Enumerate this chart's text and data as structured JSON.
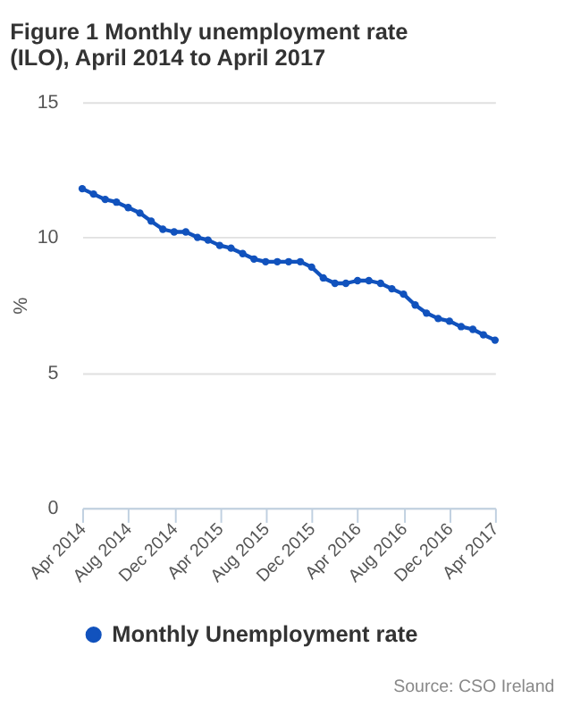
{
  "chart_data": {
    "type": "line",
    "title": "Figure 1 Monthly unemployment rate (ILO), April 2014 to April 2017",
    "ylabel": "%",
    "x": [
      "2014-04",
      "2014-05",
      "2014-06",
      "2014-07",
      "2014-08",
      "2014-09",
      "2014-10",
      "2014-11",
      "2014-12",
      "2015-01",
      "2015-02",
      "2015-03",
      "2015-04",
      "2015-05",
      "2015-06",
      "2015-07",
      "2015-08",
      "2015-09",
      "2015-10",
      "2015-11",
      "2015-12",
      "2016-01",
      "2016-02",
      "2016-03",
      "2016-04",
      "2016-05",
      "2016-06",
      "2016-07",
      "2016-08",
      "2016-09",
      "2016-10",
      "2016-11",
      "2016-12",
      "2017-01",
      "2017-02",
      "2017-03",
      "2017-04"
    ],
    "series": [
      {
        "name": "Monthly Unemployment rate",
        "color": "#1152bd",
        "values": [
          11.8,
          11.6,
          11.4,
          11.3,
          11.1,
          10.9,
          10.6,
          10.3,
          10.2,
          10.2,
          10.0,
          9.9,
          9.7,
          9.6,
          9.4,
          9.2,
          9.1,
          9.1,
          9.1,
          9.1,
          8.9,
          8.5,
          8.3,
          8.3,
          8.4,
          8.4,
          8.3,
          8.1,
          7.9,
          7.5,
          7.2,
          7.0,
          6.9,
          6.7,
          6.6,
          6.4,
          6.2
        ]
      }
    ],
    "xlim": [
      "2014-04",
      "2017-04"
    ],
    "xticks": [
      {
        "value": "2014-04",
        "label": "Apr 2014"
      },
      {
        "value": "2014-08",
        "label": "Aug 2014"
      },
      {
        "value": "2014-12",
        "label": "Dec 2014"
      },
      {
        "value": "2015-04",
        "label": "Apr 2015"
      },
      {
        "value": "2015-08",
        "label": "Aug 2015"
      },
      {
        "value": "2015-12",
        "label": "Dec 2015"
      },
      {
        "value": "2016-04",
        "label": "Apr 2016"
      },
      {
        "value": "2016-08",
        "label": "Aug 2016"
      },
      {
        "value": "2016-12",
        "label": "Dec 2016"
      },
      {
        "value": "2017-04",
        "label": "Apr 2017"
      }
    ],
    "ylim": [
      0,
      15
    ],
    "yticks": [
      0,
      5,
      10,
      15
    ],
    "grid": "y",
    "legend": "bottom",
    "marker": "circle",
    "line_style": "solid",
    "annotations": [
      "Source: CSO Ireland"
    ]
  }
}
